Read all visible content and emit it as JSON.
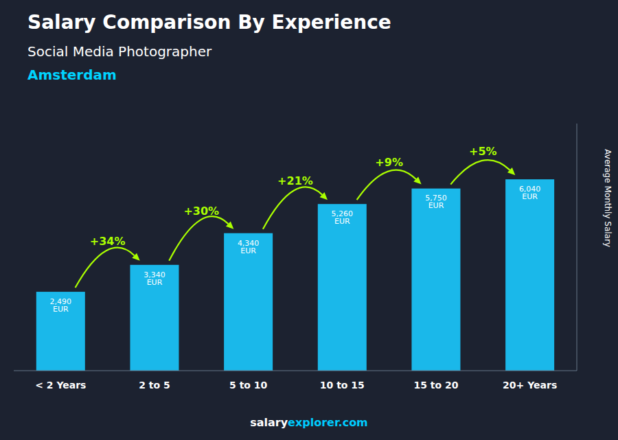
{
  "chart_data": {
    "type": "bar",
    "title": "Salary Comparison By Experience",
    "subtitle": "Social Media Photographer",
    "city": {
      "text": "Amsterdam",
      "color": "#00d4ff"
    },
    "ylabel": "Average Monthly Salary",
    "categories": [
      "< 2 Years",
      "2 to 5",
      "5 to 10",
      "10 to 15",
      "15 to 20",
      "20+ Years"
    ],
    "values": [
      2490,
      3340,
      4340,
      5260,
      5750,
      6040
    ],
    "value_labels": [
      "2,490 EUR",
      "3,340 EUR",
      "4,340 EUR",
      "5,260 EUR",
      "5,750 EUR",
      "6,040 EUR"
    ],
    "data_labels": true,
    "color": "#1ab8ea",
    "ylim": [
      0,
      7800
    ],
    "tick_labels": "x",
    "grid": false,
    "changes": {
      "color": "#aaff00",
      "values": [
        34,
        30,
        21,
        9,
        5
      ],
      "value_labels": [
        "+34%",
        "+30%",
        "+21%",
        "+9%",
        "+5%"
      ]
    },
    "footer": [
      {
        "text": "salary",
        "color": "#ffffff"
      },
      {
        "text": "explorer.com",
        "color": "#00ccff"
      }
    ]
  }
}
